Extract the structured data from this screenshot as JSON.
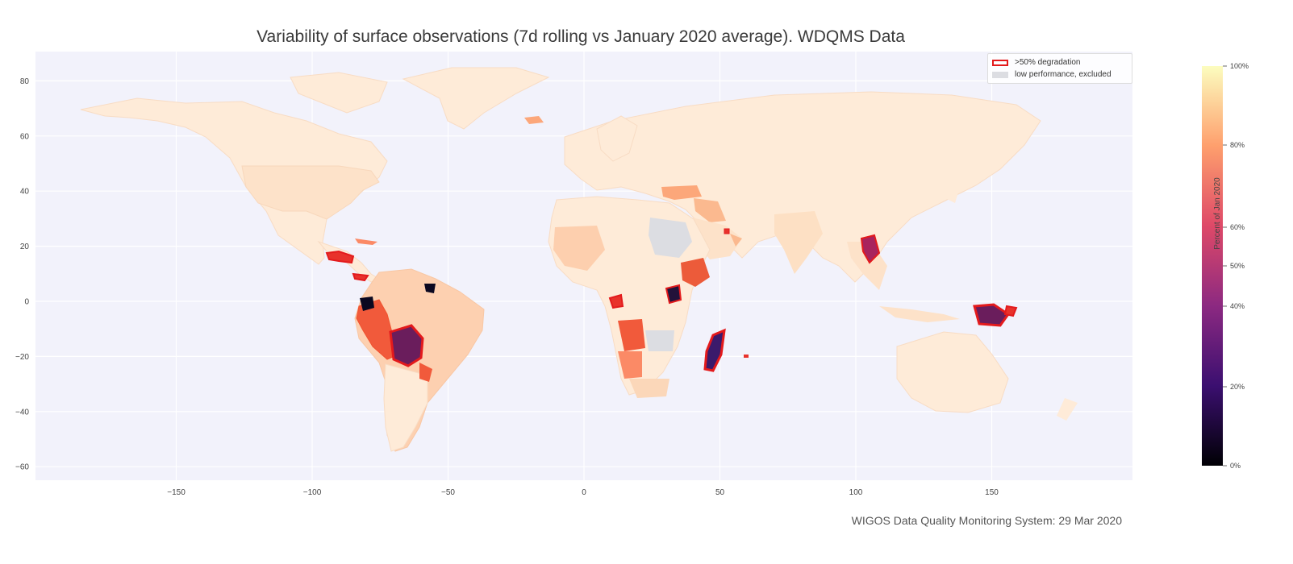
{
  "title": "Variability of surface observations (7d rolling vs January 2020 average). WDQMS Data",
  "footer": "WIGOS Data Quality Monitoring System: 29 Mar 2020",
  "legend": {
    "items": [
      {
        "label": ">50% degradation",
        "swatch": "outline",
        "color": "#e31a1c"
      },
      {
        "label": "low performance, excluded",
        "swatch": "fill",
        "color": "#dcdde2"
      }
    ]
  },
  "colorbar": {
    "label": "Percent of Jan 2020",
    "ticks": [
      "100%",
      "80%",
      "60%",
      "50%",
      "40%",
      "20%",
      "0%"
    ],
    "gradient": [
      "#000004",
      "#3b0f70",
      "#8c2981",
      "#de4968",
      "#fe9f6d",
      "#fcfdbf"
    ]
  },
  "colors": {
    "background": "#f2f2fb",
    "grid": "#ffffff",
    "land_default": "#feebd8",
    "degradation_outline": "#e31a1c"
  },
  "chart_data": {
    "type": "choropleth",
    "xlim": [
      -195,
      195
    ],
    "ylim": [
      -65,
      90
    ],
    "x_ticks": [
      -150,
      -100,
      -50,
      0,
      50,
      100,
      150
    ],
    "y_ticks": [
      -60,
      -40,
      -20,
      0,
      20,
      40,
      60,
      80
    ],
    "grid": true,
    "legend_position": "top-right"
  }
}
